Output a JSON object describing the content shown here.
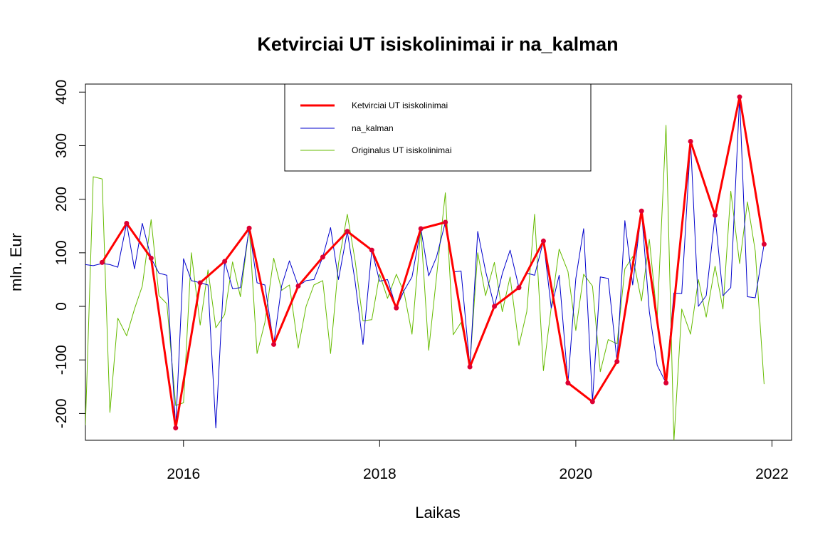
{
  "chart_data": {
    "type": "line",
    "title": "Ketvirciai UT isiskolinimai ir na_kalman",
    "xlabel": "Laikas",
    "ylabel": "mln. Eur",
    "xlim": [
      2015.0,
      2022.2
    ],
    "ylim": [
      -250,
      415
    ],
    "x_ticks": [
      2016,
      2018,
      2020,
      2022
    ],
    "x_tick_labels": [
      "2016",
      "2018",
      "2020",
      "2022"
    ],
    "y_ticks": [
      -200,
      -100,
      0,
      100,
      200,
      300,
      400
    ],
    "y_tick_labels": [
      "-200",
      "-100",
      "0",
      "100",
      "200",
      "300",
      "400"
    ],
    "grid": false,
    "legend_position": "top-center",
    "series": [
      {
        "name": "Ketvirciai UT isiskolinimai",
        "color": "#ff0000",
        "point_color": "#dd0033",
        "style": "line+points",
        "x": [
          2015.17,
          2015.42,
          2015.67,
          2015.92,
          2016.17,
          2016.42,
          2016.67,
          2016.92,
          2017.17,
          2017.42,
          2017.67,
          2017.92,
          2018.17,
          2018.42,
          2018.67,
          2018.92,
          2019.17,
          2019.42,
          2019.67,
          2019.92,
          2020.17,
          2020.42,
          2020.67,
          2020.92,
          2021.17,
          2021.42,
          2021.67,
          2021.92
        ],
        "values": [
          82,
          155,
          90,
          -227,
          44,
          84,
          146,
          -71,
          38,
          92,
          140,
          105,
          -3,
          145,
          157,
          -113,
          0,
          35,
          122,
          -143,
          -178,
          -103,
          178,
          -143,
          308,
          170,
          391,
          116
        ]
      },
      {
        "name": "na_kalman",
        "color": "#0000cc",
        "style": "line",
        "x": [
          2015.0,
          2015.08,
          2015.17,
          2015.25,
          2015.33,
          2015.42,
          2015.5,
          2015.58,
          2015.67,
          2015.75,
          2015.83,
          2015.92,
          2016.0,
          2016.08,
          2016.17,
          2016.25,
          2016.33,
          2016.42,
          2016.5,
          2016.58,
          2016.67,
          2016.75,
          2016.83,
          2016.92,
          2017.0,
          2017.08,
          2017.17,
          2017.25,
          2017.33,
          2017.42,
          2017.5,
          2017.58,
          2017.67,
          2017.75,
          2017.83,
          2017.92,
          2018.0,
          2018.08,
          2018.17,
          2018.25,
          2018.33,
          2018.42,
          2018.5,
          2018.58,
          2018.67,
          2018.75,
          2018.83,
          2018.92,
          2019.0,
          2019.08,
          2019.17,
          2019.25,
          2019.33,
          2019.42,
          2019.5,
          2019.58,
          2019.67,
          2019.75,
          2019.83,
          2019.92,
          2020.0,
          2020.08,
          2020.17,
          2020.25,
          2020.33,
          2020.42,
          2020.5,
          2020.58,
          2020.67,
          2020.75,
          2020.83,
          2020.92,
          2021.0,
          2021.08,
          2021.17,
          2021.25,
          2021.33,
          2021.42,
          2021.5,
          2021.58,
          2021.67,
          2021.75,
          2021.83,
          2021.92
        ],
        "values": [
          78,
          76,
          80,
          78,
          73,
          155,
          70,
          155,
          90,
          62,
          58,
          -227,
          89,
          48,
          44,
          40,
          -227,
          84,
          33,
          35,
          146,
          44,
          40,
          -71,
          38,
          85,
          38,
          48,
          50,
          92,
          147,
          50,
          140,
          46,
          -71,
          105,
          47,
          50,
          -3,
          30,
          55,
          145,
          57,
          92,
          157,
          64,
          66,
          -113,
          140,
          66,
          0,
          61,
          105,
          35,
          62,
          58,
          122,
          -3,
          58,
          -143,
          52,
          145,
          -178,
          55,
          52,
          -103,
          160,
          40,
          178,
          -10,
          -110,
          -143,
          25,
          24,
          308,
          0,
          20,
          170,
          20,
          35,
          391,
          18,
          16,
          116
        ]
      },
      {
        "name": "Originalus UT isiskolinimai",
        "color": "#66bb00",
        "style": "line",
        "x": [
          2015.0,
          2015.08,
          2015.17,
          2015.25,
          2015.33,
          2015.42,
          2015.5,
          2015.58,
          2015.67,
          2015.75,
          2015.83,
          2015.92,
          2016.0,
          2016.08,
          2016.17,
          2016.25,
          2016.33,
          2016.42,
          2016.5,
          2016.58,
          2016.67,
          2016.75,
          2016.83,
          2016.92,
          2017.0,
          2017.08,
          2017.17,
          2017.25,
          2017.33,
          2017.42,
          2017.5,
          2017.58,
          2017.67,
          2017.75,
          2017.83,
          2017.92,
          2018.0,
          2018.08,
          2018.17,
          2018.25,
          2018.33,
          2018.42,
          2018.5,
          2018.58,
          2018.67,
          2018.75,
          2018.83,
          2018.92,
          2019.0,
          2019.08,
          2019.17,
          2019.25,
          2019.33,
          2019.42,
          2019.5,
          2019.58,
          2019.67,
          2019.75,
          2019.83,
          2019.92,
          2020.0,
          2020.08,
          2020.17,
          2020.25,
          2020.33,
          2020.42,
          2020.5,
          2020.58,
          2020.67,
          2020.75,
          2020.83,
          2020.92,
          2021.0,
          2021.08,
          2021.17,
          2021.25,
          2021.33,
          2021.42,
          2021.5,
          2021.58,
          2021.67,
          2021.75,
          2021.83,
          2021.92
        ],
        "values": [
          -222,
          242,
          238,
          -198,
          -22,
          -55,
          -5,
          38,
          162,
          20,
          5,
          -185,
          -180,
          100,
          -35,
          68,
          -40,
          -15,
          83,
          18,
          148,
          -88,
          -30,
          90,
          30,
          40,
          -78,
          0,
          40,
          48,
          -88,
          80,
          172,
          85,
          -27,
          -25,
          60,
          15,
          60,
          25,
          -52,
          145,
          -82,
          55,
          212,
          -53,
          -30,
          -110,
          100,
          20,
          82,
          -10,
          55,
          -73,
          -10,
          172,
          -120,
          -2,
          107,
          65,
          -45,
          60,
          38,
          -122,
          -62,
          -70,
          70,
          93,
          10,
          125,
          -23,
          338,
          -252,
          -5,
          -52,
          50,
          -20,
          75,
          -5,
          215,
          80,
          195,
          103,
          -145
        ]
      }
    ]
  }
}
